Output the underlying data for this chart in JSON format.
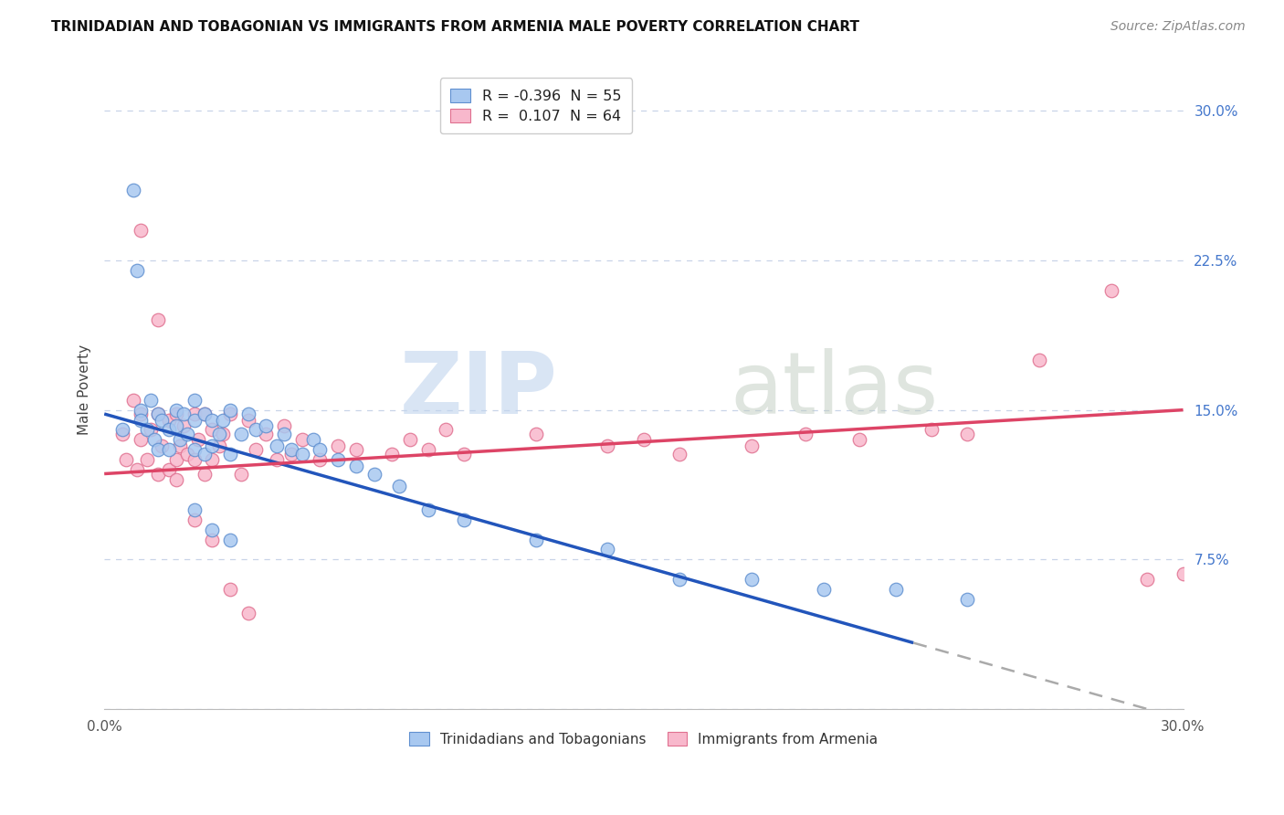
{
  "title": "TRINIDADIAN AND TOBAGONIAN VS IMMIGRANTS FROM ARMENIA MALE POVERTY CORRELATION CHART",
  "source": "Source: ZipAtlas.com",
  "ylabel": "Male Poverty",
  "xmin": 0.0,
  "xmax": 0.3,
  "ymin": 0.0,
  "ymax": 0.32,
  "yticks": [
    0.0,
    0.075,
    0.15,
    0.225,
    0.3
  ],
  "ytick_labels": [
    "",
    "7.5%",
    "15.0%",
    "22.5%",
    "30.0%"
  ],
  "xtick_labels": [
    "0.0%",
    "30.0%"
  ],
  "series1_label": "Trinidadians and Tobagonians",
  "series1_R": -0.396,
  "series1_N": 55,
  "series1_color": "#a8c8f0",
  "series1_edge": "#6090d0",
  "series2_label": "Immigrants from Armenia",
  "series2_R": 0.107,
  "series2_N": 64,
  "series2_color": "#f8b8cc",
  "series2_edge": "#e07090",
  "trendline1_color": "#2255bb",
  "trendline2_color": "#dd4466",
  "trendline_dash_color": "#aaaaaa",
  "gridline_color": "#c8d4e8",
  "legend_text1": "R = -0.396  N = 55",
  "legend_text2": "R =  0.107  N = 64",
  "watermark_zip": "ZIP",
  "watermark_atlas": "atlas",
  "trendline1_x0": 0.0,
  "trendline1_y0": 0.148,
  "trendline1_x1": 0.3,
  "trendline1_y1": -0.005,
  "trendline1_solid_end": 0.225,
  "trendline2_x0": 0.0,
  "trendline2_y0": 0.118,
  "trendline2_x1": 0.3,
  "trendline2_y1": 0.15,
  "blue_x": [
    0.005,
    0.008,
    0.009,
    0.01,
    0.01,
    0.012,
    0.013,
    0.014,
    0.015,
    0.015,
    0.016,
    0.018,
    0.018,
    0.02,
    0.02,
    0.021,
    0.022,
    0.023,
    0.025,
    0.025,
    0.025,
    0.028,
    0.028,
    0.03,
    0.03,
    0.032,
    0.033,
    0.035,
    0.035,
    0.038,
    0.04,
    0.042,
    0.045,
    0.048,
    0.05,
    0.052,
    0.055,
    0.058,
    0.06,
    0.065,
    0.07,
    0.075,
    0.082,
    0.09,
    0.1,
    0.12,
    0.14,
    0.16,
    0.18,
    0.2,
    0.025,
    0.03,
    0.035,
    0.22,
    0.24
  ],
  "blue_y": [
    0.14,
    0.26,
    0.22,
    0.15,
    0.145,
    0.14,
    0.155,
    0.135,
    0.148,
    0.13,
    0.145,
    0.14,
    0.13,
    0.15,
    0.142,
    0.135,
    0.148,
    0.138,
    0.155,
    0.145,
    0.13,
    0.148,
    0.128,
    0.145,
    0.132,
    0.138,
    0.145,
    0.15,
    0.128,
    0.138,
    0.148,
    0.14,
    0.142,
    0.132,
    0.138,
    0.13,
    0.128,
    0.135,
    0.13,
    0.125,
    0.122,
    0.118,
    0.112,
    0.1,
    0.095,
    0.085,
    0.08,
    0.065,
    0.065,
    0.06,
    0.1,
    0.09,
    0.085,
    0.06,
    0.055
  ],
  "pink_x": [
    0.005,
    0.006,
    0.008,
    0.009,
    0.01,
    0.01,
    0.012,
    0.013,
    0.015,
    0.015,
    0.016,
    0.018,
    0.018,
    0.02,
    0.02,
    0.021,
    0.022,
    0.023,
    0.025,
    0.025,
    0.026,
    0.028,
    0.028,
    0.03,
    0.03,
    0.032,
    0.033,
    0.035,
    0.038,
    0.04,
    0.042,
    0.045,
    0.048,
    0.05,
    0.052,
    0.055,
    0.06,
    0.065,
    0.07,
    0.08,
    0.085,
    0.09,
    0.095,
    0.1,
    0.12,
    0.14,
    0.15,
    0.16,
    0.18,
    0.195,
    0.21,
    0.23,
    0.24,
    0.26,
    0.28,
    0.29,
    0.01,
    0.015,
    0.02,
    0.025,
    0.03,
    0.035,
    0.04,
    0.3
  ],
  "pink_y": [
    0.138,
    0.125,
    0.155,
    0.12,
    0.148,
    0.135,
    0.125,
    0.14,
    0.148,
    0.118,
    0.132,
    0.145,
    0.12,
    0.148,
    0.125,
    0.132,
    0.142,
    0.128,
    0.148,
    0.125,
    0.135,
    0.148,
    0.118,
    0.14,
    0.125,
    0.132,
    0.138,
    0.148,
    0.118,
    0.145,
    0.13,
    0.138,
    0.125,
    0.142,
    0.128,
    0.135,
    0.125,
    0.132,
    0.13,
    0.128,
    0.135,
    0.13,
    0.14,
    0.128,
    0.138,
    0.132,
    0.135,
    0.128,
    0.132,
    0.138,
    0.135,
    0.14,
    0.138,
    0.175,
    0.21,
    0.065,
    0.24,
    0.195,
    0.115,
    0.095,
    0.085,
    0.06,
    0.048,
    0.068
  ]
}
